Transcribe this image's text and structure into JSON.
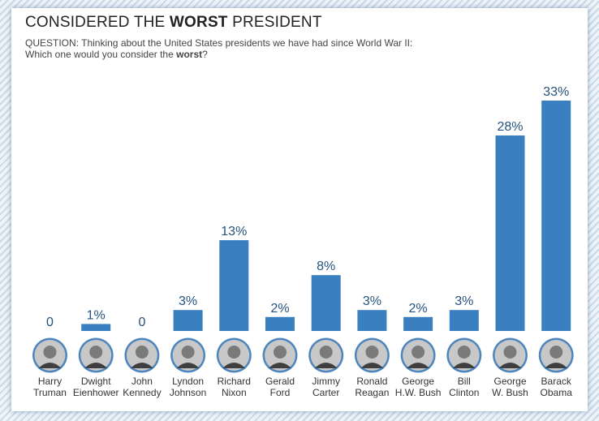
{
  "title": {
    "prefix": "CONSIDERED THE ",
    "emph": "WORST",
    "suffix": " PRESIDENT"
  },
  "question": {
    "line1": "QUESTION: Thinking about the United States presidents we have had since World War II:",
    "line2_prefix": "Which one would you consider the ",
    "line2_emph": "worst",
    "line2_suffix": "?"
  },
  "colors": {
    "bar": "#3a7fbf",
    "value_label": "#25527d",
    "name_label": "#333333"
  },
  "chart_data": {
    "type": "bar",
    "title": "CONSIDERED THE WORST PRESIDENT",
    "categories": [
      [
        "Harry",
        "Truman"
      ],
      [
        "Dwight",
        "Eienhower"
      ],
      [
        "John",
        "Kennedy"
      ],
      [
        "Lyndon",
        "Johnson"
      ],
      [
        "Richard",
        "Nixon"
      ],
      [
        "Gerald",
        "Ford"
      ],
      [
        "Jimmy",
        "Carter"
      ],
      [
        "Ronald",
        "Reagan"
      ],
      [
        "George",
        "H.W. Bush"
      ],
      [
        "Bill",
        "Clinton"
      ],
      [
        "George",
        "W. Bush"
      ],
      [
        "Barack",
        "Obama"
      ]
    ],
    "values": [
      0,
      1,
      0,
      3,
      13,
      2,
      8,
      3,
      2,
      3,
      28,
      33
    ],
    "value_labels": [
      "0",
      "1%",
      "0",
      "3%",
      "13%",
      "2%",
      "8%",
      "3%",
      "2%",
      "3%",
      "28%",
      "33%"
    ],
    "portrait_icon": "president-portrait-icon",
    "ylim": [
      0,
      33
    ],
    "grid": false,
    "legend": "none"
  }
}
